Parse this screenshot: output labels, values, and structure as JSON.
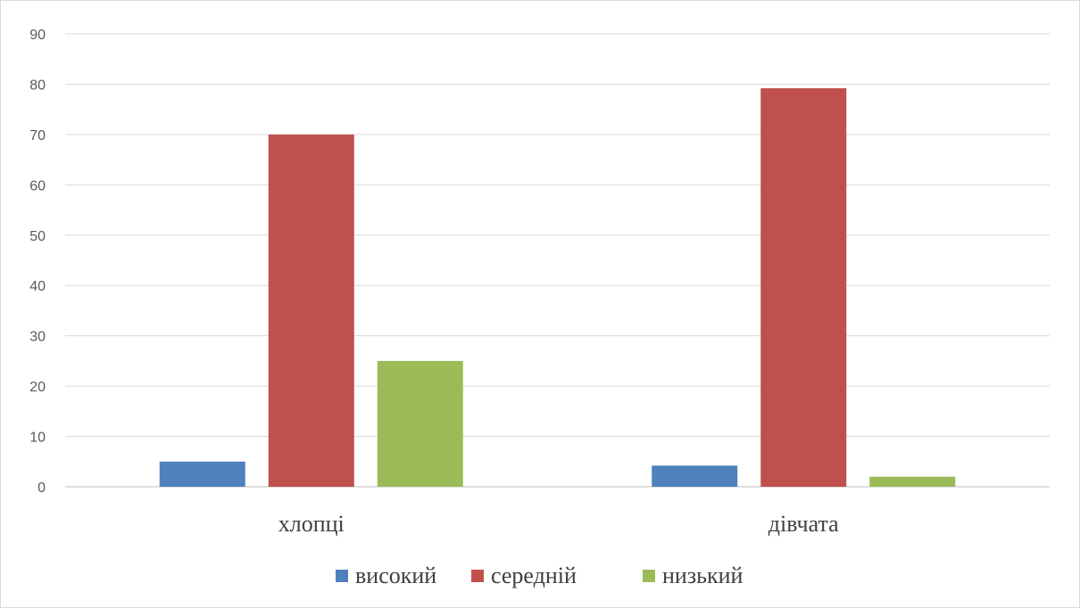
{
  "chart_data": {
    "type": "bar",
    "title": "",
    "xlabel": "",
    "ylabel": "",
    "categories": [
      "хлопці",
      "дівчата"
    ],
    "series": [
      {
        "name": "високий",
        "values": [
          5,
          4.2
        ],
        "color": "#4f81bd"
      },
      {
        "name": "середній",
        "values": [
          70,
          79.2
        ],
        "color": "#c0504d"
      },
      {
        "name": "низький",
        "values": [
          25,
          2
        ],
        "color": "#9bbb59"
      }
    ],
    "ylim": [
      0,
      90
    ],
    "yticks": [
      0,
      10,
      20,
      30,
      40,
      50,
      60,
      70,
      80,
      90
    ],
    "grid": true,
    "legend": "bottom"
  }
}
